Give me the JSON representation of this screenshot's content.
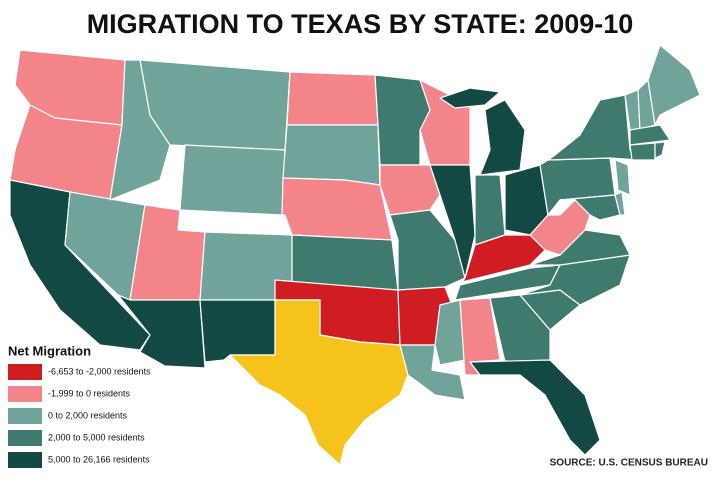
{
  "header": {
    "title": "MIGRATION TO TEXAS BY STATE: 2009-10"
  },
  "legend": {
    "title": "Net Migration",
    "items": [
      {
        "label": "-6,653 to -2,000 residents",
        "color": "#cf1d22"
      },
      {
        "label": "-1,999 to 0 residents",
        "color": "#f3858a"
      },
      {
        "label": "0 to 2,000 residents",
        "color": "#70a39a"
      },
      {
        "label": "2,000 to 5,000 residents",
        "color": "#3f7a6e"
      },
      {
        "label": "5,000 to 26,166 residents",
        "color": "#124942"
      }
    ]
  },
  "source": "SOURCE: U.S. CENSUS BUREAU"
}
